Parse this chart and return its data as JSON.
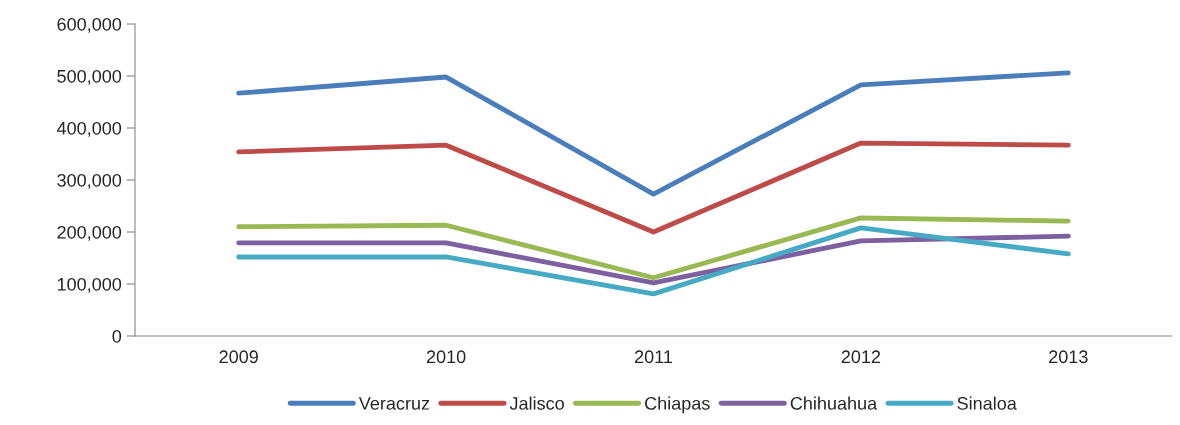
{
  "chart_data": {
    "type": "line",
    "categories": [
      "2009",
      "2010",
      "2011",
      "2012",
      "2013"
    ],
    "series": [
      {
        "name": "Veracruz",
        "color": "#4a7ebb",
        "values": [
          467000,
          498000,
          273000,
          483000,
          506000
        ]
      },
      {
        "name": "Jalisco",
        "color": "#be4b48",
        "values": [
          354000,
          367000,
          200000,
          371000,
          367000
        ]
      },
      {
        "name": "Chiapas",
        "color": "#98b954",
        "values": [
          210000,
          213000,
          112000,
          227000,
          221000
        ]
      },
      {
        "name": "Chihuahua",
        "color": "#7d60a0",
        "values": [
          179000,
          179000,
          102000,
          183000,
          192000
        ]
      },
      {
        "name": "Sinaloa",
        "color": "#46aac5",
        "values": [
          152000,
          152000,
          81000,
          208000,
          158000
        ]
      }
    ],
    "ylim": [
      0,
      600000
    ],
    "yticks": [
      0,
      {
        "value": 100000,
        "label": "100,000"
      },
      {
        "value": 200000,
        "label": "200,000"
      },
      {
        "value": 300000,
        "label": "300,000"
      },
      {
        "value": 400000,
        "label": "400,000"
      },
      {
        "value": 500000,
        "label": "500,000"
      },
      {
        "value": 600000,
        "label": "600,000"
      }
    ],
    "grid": false,
    "legend": "bottom",
    "marker": "none",
    "line_style": "solid"
  }
}
